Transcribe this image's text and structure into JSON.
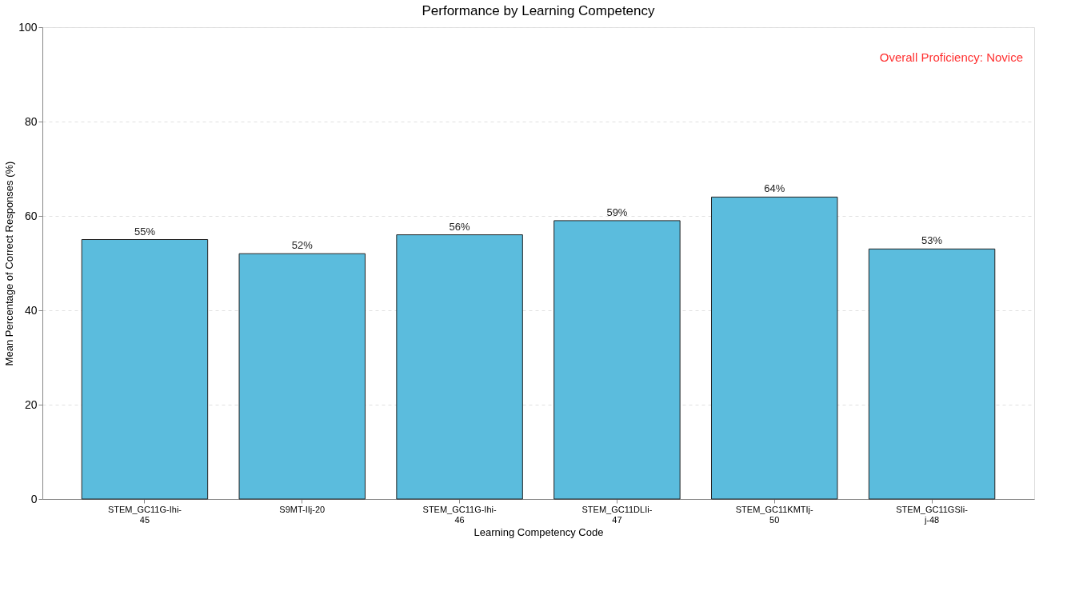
{
  "chart_data": {
    "type": "bar",
    "title": "Performance by Learning Competency",
    "xlabel": "Learning Competency Code",
    "ylabel": "Mean Percentage of Correct Responses (%)",
    "categories": [
      "STEM_GC11G-Ihi-45",
      "S9MT-IIj-20",
      "STEM_GC11G-Ihi-46",
      "STEM_GC11DLIi-47",
      "STEM_GC11KMTIj-50",
      "STEM_GC11GSIi-j-48"
    ],
    "values": [
      55,
      52,
      56,
      59,
      64,
      53
    ],
    "value_labels": [
      "55%",
      "52%",
      "56%",
      "59%",
      "64%",
      "53%"
    ],
    "color": "#5bbcdd",
    "ylim": [
      0,
      100
    ],
    "yticks": [
      0,
      20,
      40,
      60,
      80,
      100
    ],
    "grid": "y",
    "annotations": [
      "Overall Proficiency: Novice"
    ]
  }
}
